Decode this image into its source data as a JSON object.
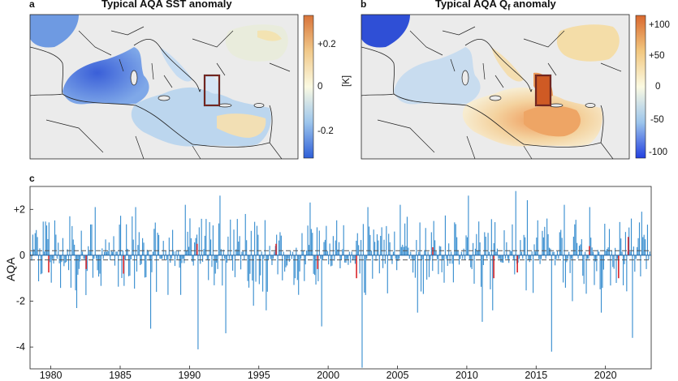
{
  "panels": {
    "a": {
      "label": "a",
      "title": "Typical AQA SST anomaly",
      "colorbar_ticks": [
        "+0.2",
        "0",
        "-0.2"
      ],
      "colorbar_unit": "[K]",
      "colorbar_range": [
        -0.3,
        0.3
      ]
    },
    "b": {
      "label": "b",
      "title_main": "Typical AQA Q",
      "title_sub": "f",
      "title_end": " anomaly",
      "colorbar_ticks": [
        "+100",
        "+50",
        "0",
        "-50",
        "-100"
      ],
      "colorbar_range": [
        -110,
        110
      ]
    },
    "c": {
      "label": "c"
    }
  },
  "colors": {
    "ocean_blue": "#3a8fd0",
    "red_bar": "#d9262b",
    "land": "#ebebeb",
    "box_red": "#c0281f",
    "dashed": "#555555"
  },
  "chart_data": {
    "type": "bar",
    "ylabel": "AQA",
    "xlabel": "",
    "xlim": [
      1979,
      2023.8
    ],
    "ylim": [
      -4.95,
      3.0
    ],
    "xticks": [
      1980,
      1985,
      1990,
      1995,
      2000,
      2005,
      2010,
      2015,
      2020
    ],
    "xtick_labels": [
      "1980",
      "1985",
      "1990",
      "1995",
      "2000",
      "2005",
      "2010",
      "2015",
      "2020"
    ],
    "yticks": [
      2,
      0,
      -2,
      -4
    ],
    "ytick_labels": [
      "+2",
      "0",
      "-2",
      "-4"
    ],
    "thresholds": [
      0.2,
      -0.2
    ],
    "grid": false,
    "series": [
      {
        "name": "monthly AQA",
        "color": "#3a8fd0",
        "step": 0.0833,
        "start": 1979.0,
        "values": "monthly values, estimated per year below"
      },
      {
        "name": "flagged events",
        "color": "#d9262b"
      }
    ],
    "notable_bars": [
      {
        "x": 1979.4,
        "value": 1.1
      },
      {
        "x": 1980.2,
        "value": 1.3
      },
      {
        "x": 1981.8,
        "value": 1.7
      },
      {
        "x": 1982.3,
        "value": -2.3
      },
      {
        "x": 1983.7,
        "value": 2.1
      },
      {
        "x": 1986.6,
        "value": 2.1
      },
      {
        "x": 1987.7,
        "value": -3.2
      },
      {
        "x": 1990.2,
        "value": 2.2
      },
      {
        "x": 1991.1,
        "value": -4.1
      },
      {
        "x": 1992.7,
        "value": 2.6
      },
      {
        "x": 1993.1,
        "value": -3.4
      },
      {
        "x": 1994.5,
        "value": 1.8
      },
      {
        "x": 1995.1,
        "value": -2.2
      },
      {
        "x": 1996.0,
        "value": -2.4
      },
      {
        "x": 1999.2,
        "value": 2.3
      },
      {
        "x": 2000.0,
        "value": -3.1
      },
      {
        "x": 2002.9,
        "value": -4.9
      },
      {
        "x": 2003.3,
        "value": 2.1
      },
      {
        "x": 2005.7,
        "value": 2.2
      },
      {
        "x": 2006.9,
        "value": -2.5
      },
      {
        "x": 2010.6,
        "value": 2.6
      },
      {
        "x": 2011.6,
        "value": -2.9
      },
      {
        "x": 2012.3,
        "value": -2.4
      },
      {
        "x": 2014.0,
        "value": 2.8
      },
      {
        "x": 2014.8,
        "value": 2.4
      },
      {
        "x": 2016.6,
        "value": -4.2
      },
      {
        "x": 2017.5,
        "value": 2.2
      },
      {
        "x": 2018.1,
        "value": -2.0
      },
      {
        "x": 2019.3,
        "value": 2.1
      },
      {
        "x": 2020.2,
        "value": -2.5
      },
      {
        "x": 2022.3,
        "value": 1.6
      },
      {
        "x": 2022.4,
        "value": -3.6
      },
      {
        "x": 2023.1,
        "value": 1.9
      }
    ],
    "red_bars": [
      {
        "x": 1980.3,
        "value": -0.75
      },
      {
        "x": 1983.0,
        "value": -0.6
      },
      {
        "x": 1985.7,
        "value": -0.8
      },
      {
        "x": 1991.0,
        "value": 0.5
      },
      {
        "x": 1996.7,
        "value": 0.5
      },
      {
        "x": 1999.7,
        "value": -0.6
      },
      {
        "x": 2002.5,
        "value": -1.0
      },
      {
        "x": 2008.0,
        "value": 0.35
      },
      {
        "x": 2012.4,
        "value": -1.0
      },
      {
        "x": 2014.1,
        "value": -0.75
      },
      {
        "x": 2019.3,
        "value": 0.4
      },
      {
        "x": 2021.4,
        "value": -1.0
      },
      {
        "x": 2022.1,
        "value": 0.8
      }
    ]
  }
}
